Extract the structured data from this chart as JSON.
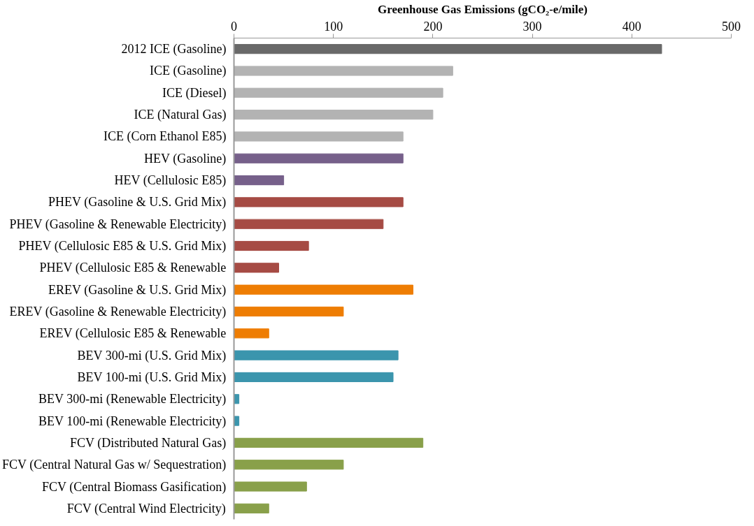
{
  "chart_data": {
    "type": "bar",
    "orientation": "horizontal",
    "xlabel": "Greenhouse Gas Emissions (gCO₂-e/mile)",
    "categories": [
      "2012 ICE (Gasoline)",
      "ICE (Gasoline)",
      "ICE (Diesel)",
      "ICE (Natural Gas)",
      "ICE (Corn Ethanol E85)",
      "HEV (Gasoline)",
      "HEV (Cellulosic E85)",
      "PHEV (Gasoline & U.S. Grid Mix)",
      "PHEV (Gasoline & Renewable Electricity)",
      "PHEV (Cellulosic E85 & U.S. Grid Mix)",
      "PHEV (Cellulosic E85 & Renewable",
      "EREV (Gasoline & U.S. Grid Mix)",
      "EREV (Gasoline & Renewable Electricity)",
      "EREV (Cellulosic E85 & Renewable",
      "BEV 300-mi (U.S. Grid Mix)",
      "BEV 100-mi (U.S. Grid Mix)",
      "BEV 300-mi (Renewable Electricity)",
      "BEV 100-mi (Renewable Electricity)",
      "FCV (Distributed Natural Gas)",
      "FCV (Central Natural Gas w/ Sequestration)",
      "FCV (Central Biomass Gasification)",
      "FCV (Central Wind Electricity)"
    ],
    "values": [
      430,
      220,
      210,
      200,
      170,
      170,
      50,
      170,
      150,
      75,
      45,
      180,
      110,
      35,
      165,
      160,
      5,
      5,
      190,
      110,
      73,
      35
    ],
    "colors": [
      "#696969",
      "#b3b3b3",
      "#b3b3b3",
      "#b3b3b3",
      "#b3b3b3",
      "#76608a",
      "#76608a",
      "#a64b44",
      "#a64b44",
      "#a64b44",
      "#a64b44",
      "#ee7d03",
      "#ee7d03",
      "#ee7d03",
      "#3b95ad",
      "#3b95ad",
      "#3b95ad",
      "#3b95ad",
      "#89a04a",
      "#89a04a",
      "#89a04a",
      "#89a04a"
    ],
    "xlim": [
      0,
      500
    ],
    "xticks": [
      0,
      100,
      200,
      300,
      400,
      500
    ],
    "grid": false
  }
}
